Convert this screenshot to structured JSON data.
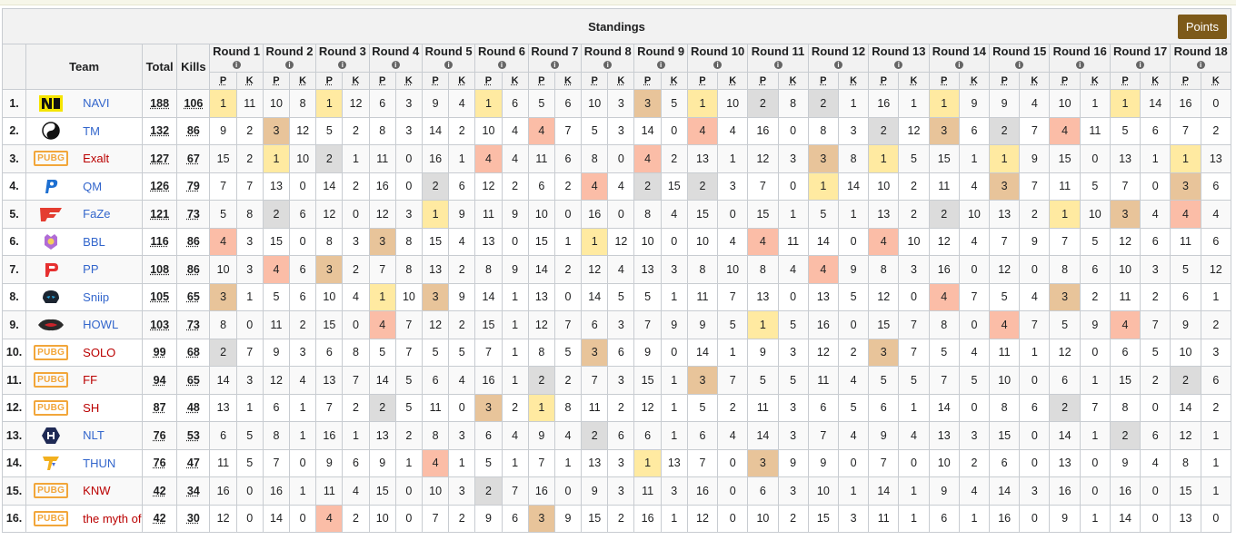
{
  "title": "Standings",
  "points_button": "Points",
  "headers": {
    "team": "Team",
    "total": "Total",
    "kills": "Kills",
    "p": "P",
    "k": "K",
    "info": "i"
  },
  "rounds": [
    "Round 1",
    "Round 2",
    "Round 3",
    "Round 4",
    "Round 5",
    "Round 6",
    "Round 7",
    "Round 8",
    "Round 9",
    "Round 10",
    "Round 11",
    "Round 12",
    "Round 13",
    "Round 14",
    "Round 15",
    "Round 16",
    "Round 17",
    "Round 18"
  ],
  "colors": {
    "gold": "#ffeaa1",
    "silver": "#dcdcdc",
    "bronze": "#e8c49a",
    "red": "#fbbda7",
    "points_button": "#7d5a1a",
    "link": "#3366cc"
  },
  "teams": [
    {
      "rank": "1.",
      "name": "NAVI",
      "logo": "navi-logo",
      "total": "188",
      "kills": "106",
      "rounds": [
        [
          "1",
          "11"
        ],
        [
          "10",
          "8"
        ],
        [
          "1",
          "12"
        ],
        [
          "6",
          "3"
        ],
        [
          "9",
          "4"
        ],
        [
          "1",
          "6"
        ],
        [
          "5",
          "6"
        ],
        [
          "10",
          "3"
        ],
        [
          "3",
          "5"
        ],
        [
          "1",
          "10"
        ],
        [
          "2",
          "8"
        ],
        [
          "2",
          "1"
        ],
        [
          "16",
          "1"
        ],
        [
          "1",
          "9"
        ],
        [
          "9",
          "4"
        ],
        [
          "10",
          "1"
        ],
        [
          "1",
          "14"
        ],
        [
          "16",
          "0"
        ]
      ]
    },
    {
      "rank": "2.",
      "name": "TM",
      "logo": "tm-logo",
      "total": "132",
      "kills": "86",
      "rounds": [
        [
          "9",
          "2"
        ],
        [
          "3",
          "12"
        ],
        [
          "5",
          "2"
        ],
        [
          "8",
          "3"
        ],
        [
          "14",
          "2"
        ],
        [
          "10",
          "4"
        ],
        [
          "4",
          "7"
        ],
        [
          "5",
          "3"
        ],
        [
          "14",
          "0"
        ],
        [
          "4",
          "4"
        ],
        [
          "16",
          "0"
        ],
        [
          "8",
          "3"
        ],
        [
          "2",
          "12"
        ],
        [
          "3",
          "6"
        ],
        [
          "2",
          "7"
        ],
        [
          "4",
          "11"
        ],
        [
          "5",
          "6"
        ],
        [
          "7",
          "2"
        ]
      ]
    },
    {
      "rank": "3.",
      "name": "Exalt",
      "logo": "pubg-logo",
      "total": "127",
      "kills": "67",
      "rounds": [
        [
          "15",
          "2"
        ],
        [
          "1",
          "10"
        ],
        [
          "2",
          "1"
        ],
        [
          "11",
          "0"
        ],
        [
          "16",
          "1"
        ],
        [
          "4",
          "4"
        ],
        [
          "11",
          "6"
        ],
        [
          "8",
          "0"
        ],
        [
          "4",
          "2"
        ],
        [
          "13",
          "1"
        ],
        [
          "12",
          "3"
        ],
        [
          "3",
          "8"
        ],
        [
          "1",
          "5"
        ],
        [
          "15",
          "1"
        ],
        [
          "1",
          "9"
        ],
        [
          "15",
          "0"
        ],
        [
          "13",
          "1"
        ],
        [
          "1",
          "13"
        ]
      ]
    },
    {
      "rank": "4.",
      "name": "QM",
      "logo": "qm-logo",
      "total": "126",
      "kills": "79",
      "rounds": [
        [
          "7",
          "7"
        ],
        [
          "13",
          "0"
        ],
        [
          "14",
          "2"
        ],
        [
          "16",
          "0"
        ],
        [
          "2",
          "6"
        ],
        [
          "12",
          "2"
        ],
        [
          "6",
          "2"
        ],
        [
          "4",
          "4"
        ],
        [
          "2",
          "15"
        ],
        [
          "2",
          "3"
        ],
        [
          "7",
          "0"
        ],
        [
          "1",
          "14"
        ],
        [
          "10",
          "2"
        ],
        [
          "11",
          "4"
        ],
        [
          "3",
          "7"
        ],
        [
          "11",
          "5"
        ],
        [
          "7",
          "0"
        ],
        [
          "3",
          "6"
        ]
      ]
    },
    {
      "rank": "5.",
      "name": "FaZe",
      "logo": "faze-logo",
      "total": "121",
      "kills": "73",
      "rounds": [
        [
          "5",
          "8"
        ],
        [
          "2",
          "6"
        ],
        [
          "12",
          "0"
        ],
        [
          "12",
          "3"
        ],
        [
          "1",
          "9"
        ],
        [
          "11",
          "9"
        ],
        [
          "10",
          "0"
        ],
        [
          "16",
          "0"
        ],
        [
          "8",
          "4"
        ],
        [
          "15",
          "0"
        ],
        [
          "15",
          "1"
        ],
        [
          "5",
          "1"
        ],
        [
          "13",
          "2"
        ],
        [
          "2",
          "10"
        ],
        [
          "13",
          "2"
        ],
        [
          "1",
          "10"
        ],
        [
          "3",
          "4"
        ],
        [
          "4",
          "4"
        ]
      ]
    },
    {
      "rank": "6.",
      "name": "BBL",
      "logo": "bbl-logo",
      "total": "116",
      "kills": "86",
      "rounds": [
        [
          "4",
          "3"
        ],
        [
          "15",
          "0"
        ],
        [
          "8",
          "3"
        ],
        [
          "3",
          "8"
        ],
        [
          "15",
          "4"
        ],
        [
          "13",
          "0"
        ],
        [
          "15",
          "1"
        ],
        [
          "1",
          "12"
        ],
        [
          "10",
          "0"
        ],
        [
          "10",
          "4"
        ],
        [
          "4",
          "11"
        ],
        [
          "14",
          "0"
        ],
        [
          "4",
          "10"
        ],
        [
          "12",
          "4"
        ],
        [
          "7",
          "9"
        ],
        [
          "7",
          "5"
        ],
        [
          "12",
          "6"
        ],
        [
          "11",
          "6"
        ]
      ]
    },
    {
      "rank": "7.",
      "name": "PP",
      "logo": "pp-logo",
      "total": "108",
      "kills": "86",
      "rounds": [
        [
          "10",
          "3"
        ],
        [
          "4",
          "6"
        ],
        [
          "3",
          "2"
        ],
        [
          "7",
          "8"
        ],
        [
          "13",
          "2"
        ],
        [
          "8",
          "9"
        ],
        [
          "14",
          "2"
        ],
        [
          "12",
          "4"
        ],
        [
          "13",
          "3"
        ],
        [
          "8",
          "10"
        ],
        [
          "8",
          "4"
        ],
        [
          "4",
          "9"
        ],
        [
          "8",
          "3"
        ],
        [
          "16",
          "0"
        ],
        [
          "12",
          "0"
        ],
        [
          "8",
          "6"
        ],
        [
          "10",
          "3"
        ],
        [
          "5",
          "12"
        ]
      ]
    },
    {
      "rank": "8.",
      "name": "Sniip",
      "logo": "sniip-logo",
      "total": "105",
      "kills": "65",
      "rounds": [
        [
          "3",
          "1"
        ],
        [
          "5",
          "6"
        ],
        [
          "10",
          "4"
        ],
        [
          "1",
          "10"
        ],
        [
          "3",
          "9"
        ],
        [
          "14",
          "1"
        ],
        [
          "13",
          "0"
        ],
        [
          "14",
          "5"
        ],
        [
          "5",
          "1"
        ],
        [
          "11",
          "7"
        ],
        [
          "13",
          "0"
        ],
        [
          "13",
          "5"
        ],
        [
          "12",
          "0"
        ],
        [
          "4",
          "7"
        ],
        [
          "5",
          "4"
        ],
        [
          "3",
          "2"
        ],
        [
          "11",
          "2"
        ],
        [
          "6",
          "1"
        ]
      ]
    },
    {
      "rank": "9.",
      "name": "HOWL",
      "logo": "howl-logo",
      "total": "103",
      "kills": "73",
      "rounds": [
        [
          "8",
          "0"
        ],
        [
          "11",
          "2"
        ],
        [
          "15",
          "0"
        ],
        [
          "4",
          "7"
        ],
        [
          "12",
          "2"
        ],
        [
          "15",
          "1"
        ],
        [
          "12",
          "7"
        ],
        [
          "6",
          "3"
        ],
        [
          "7",
          "9"
        ],
        [
          "9",
          "5"
        ],
        [
          "1",
          "5"
        ],
        [
          "16",
          "0"
        ],
        [
          "15",
          "7"
        ],
        [
          "8",
          "0"
        ],
        [
          "4",
          "7"
        ],
        [
          "5",
          "9"
        ],
        [
          "4",
          "7"
        ],
        [
          "9",
          "2"
        ]
      ]
    },
    {
      "rank": "10.",
      "name": "SOLO",
      "logo": "pubg-logo",
      "total": "99",
      "kills": "68",
      "rounds": [
        [
          "2",
          "7"
        ],
        [
          "9",
          "3"
        ],
        [
          "6",
          "8"
        ],
        [
          "5",
          "7"
        ],
        [
          "5",
          "5"
        ],
        [
          "7",
          "1"
        ],
        [
          "8",
          "5"
        ],
        [
          "3",
          "6"
        ],
        [
          "9",
          "0"
        ],
        [
          "14",
          "1"
        ],
        [
          "9",
          "3"
        ],
        [
          "12",
          "2"
        ],
        [
          "3",
          "7"
        ],
        [
          "5",
          "4"
        ],
        [
          "11",
          "1"
        ],
        [
          "12",
          "0"
        ],
        [
          "6",
          "5"
        ],
        [
          "10",
          "3"
        ]
      ]
    },
    {
      "rank": "11.",
      "name": "FF",
      "logo": "pubg-logo",
      "total": "94",
      "kills": "65",
      "rounds": [
        [
          "14",
          "3"
        ],
        [
          "12",
          "4"
        ],
        [
          "13",
          "7"
        ],
        [
          "14",
          "5"
        ],
        [
          "6",
          "4"
        ],
        [
          "16",
          "1"
        ],
        [
          "2",
          "2"
        ],
        [
          "7",
          "3"
        ],
        [
          "15",
          "1"
        ],
        [
          "3",
          "7"
        ],
        [
          "5",
          "5"
        ],
        [
          "11",
          "4"
        ],
        [
          "5",
          "5"
        ],
        [
          "7",
          "5"
        ],
        [
          "10",
          "0"
        ],
        [
          "6",
          "1"
        ],
        [
          "15",
          "2"
        ],
        [
          "2",
          "6"
        ]
      ]
    },
    {
      "rank": "12.",
      "name": "SH",
      "logo": "pubg-logo",
      "total": "87",
      "kills": "48",
      "rounds": [
        [
          "13",
          "1"
        ],
        [
          "6",
          "1"
        ],
        [
          "7",
          "2"
        ],
        [
          "2",
          "5"
        ],
        [
          "11",
          "0"
        ],
        [
          "3",
          "2"
        ],
        [
          "1",
          "8"
        ],
        [
          "11",
          "2"
        ],
        [
          "12",
          "1"
        ],
        [
          "5",
          "2"
        ],
        [
          "11",
          "3"
        ],
        [
          "6",
          "5"
        ],
        [
          "6",
          "1"
        ],
        [
          "14",
          "0"
        ],
        [
          "8",
          "6"
        ],
        [
          "2",
          "7"
        ],
        [
          "8",
          "0"
        ],
        [
          "14",
          "2"
        ]
      ]
    },
    {
      "rank": "13.",
      "name": "NLT",
      "logo": "nlt-logo",
      "total": "76",
      "kills": "53",
      "rounds": [
        [
          "6",
          "5"
        ],
        [
          "8",
          "1"
        ],
        [
          "16",
          "1"
        ],
        [
          "13",
          "2"
        ],
        [
          "8",
          "3"
        ],
        [
          "6",
          "4"
        ],
        [
          "9",
          "4"
        ],
        [
          "2",
          "6"
        ],
        [
          "6",
          "1"
        ],
        [
          "6",
          "4"
        ],
        [
          "14",
          "3"
        ],
        [
          "7",
          "4"
        ],
        [
          "9",
          "4"
        ],
        [
          "13",
          "3"
        ],
        [
          "15",
          "0"
        ],
        [
          "14",
          "1"
        ],
        [
          "2",
          "6"
        ],
        [
          "12",
          "1"
        ]
      ]
    },
    {
      "rank": "14.",
      "name": "THUN",
      "logo": "thun-logo",
      "total": "76",
      "kills": "47",
      "rounds": [
        [
          "11",
          "5"
        ],
        [
          "7",
          "0"
        ],
        [
          "9",
          "6"
        ],
        [
          "9",
          "1"
        ],
        [
          "4",
          "1"
        ],
        [
          "5",
          "1"
        ],
        [
          "7",
          "1"
        ],
        [
          "13",
          "3"
        ],
        [
          "1",
          "13"
        ],
        [
          "7",
          "0"
        ],
        [
          "3",
          "9"
        ],
        [
          "9",
          "0"
        ],
        [
          "7",
          "0"
        ],
        [
          "10",
          "2"
        ],
        [
          "6",
          "0"
        ],
        [
          "13",
          "0"
        ],
        [
          "9",
          "4"
        ],
        [
          "8",
          "1"
        ]
      ]
    },
    {
      "rank": "15.",
      "name": "KNW",
      "logo": "pubg-logo",
      "total": "42",
      "kills": "34",
      "rounds": [
        [
          "16",
          "0"
        ],
        [
          "16",
          "1"
        ],
        [
          "11",
          "4"
        ],
        [
          "15",
          "0"
        ],
        [
          "10",
          "3"
        ],
        [
          "2",
          "7"
        ],
        [
          "16",
          "0"
        ],
        [
          "9",
          "3"
        ],
        [
          "11",
          "3"
        ],
        [
          "16",
          "0"
        ],
        [
          "6",
          "3"
        ],
        [
          "10",
          "1"
        ],
        [
          "14",
          "1"
        ],
        [
          "9",
          "4"
        ],
        [
          "14",
          "3"
        ],
        [
          "16",
          "0"
        ],
        [
          "16",
          "0"
        ],
        [
          "15",
          "1"
        ]
      ]
    },
    {
      "rank": "16.",
      "name": "the myth of",
      "logo": "pubg-logo",
      "total": "42",
      "kills": "30",
      "rounds": [
        [
          "12",
          "0"
        ],
        [
          "14",
          "0"
        ],
        [
          "4",
          "2"
        ],
        [
          "10",
          "0"
        ],
        [
          "7",
          "2"
        ],
        [
          "9",
          "6"
        ],
        [
          "3",
          "9"
        ],
        [
          "15",
          "2"
        ],
        [
          "16",
          "1"
        ],
        [
          "12",
          "0"
        ],
        [
          "10",
          "2"
        ],
        [
          "15",
          "3"
        ],
        [
          "11",
          "1"
        ],
        [
          "6",
          "1"
        ],
        [
          "16",
          "0"
        ],
        [
          "9",
          "1"
        ],
        [
          "14",
          "0"
        ],
        [
          "13",
          "0"
        ]
      ]
    }
  ]
}
